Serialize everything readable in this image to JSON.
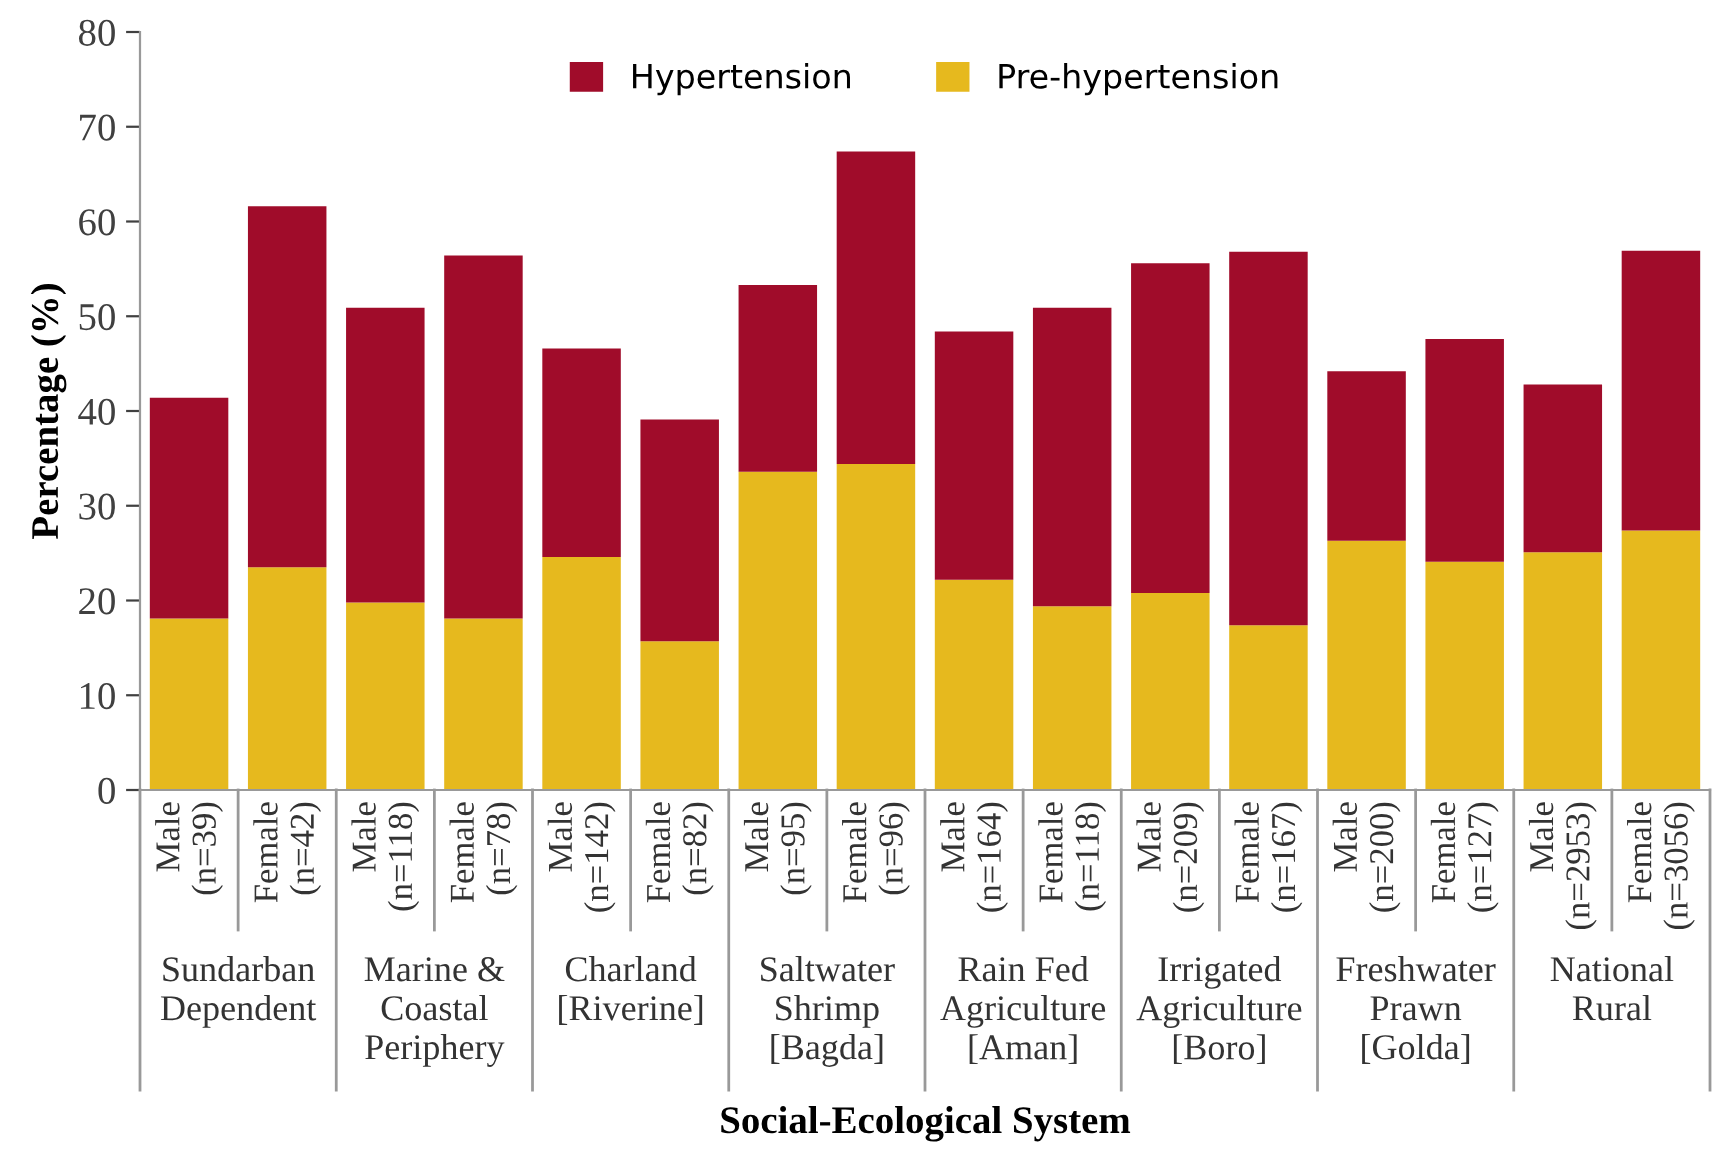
{
  "chart_data": {
    "type": "bar",
    "stacked": true,
    "ylabel": "Percentage (%)",
    "xlabel": "Social-Ecological System",
    "categories": [
      "Male\n(n=39)",
      "Female\n(n=42)",
      "Male\n(n=118)",
      "Female\n(n=78)",
      "Male\n(n=142)",
      "Female\n(n=82)",
      "Male\n(n=95)",
      "Female\n(n=96)",
      "Male\n(n=164)",
      "Female\n(n=118)",
      "Male\n(n=209)",
      "Female\n(n=167)",
      "Male\n(n=200)",
      "Female\n(n=127)",
      "Male\n(n=2953)",
      "Female\n(n=3056)"
    ],
    "series": [
      {
        "name": "Pre-hypertension",
        "color": "#e6b91e",
        "values": [
          18.1,
          23.5,
          19.8,
          18.1,
          24.6,
          15.7,
          33.6,
          34.4,
          22.2,
          19.4,
          20.8,
          17.4,
          26.3,
          24.1,
          25.1,
          27.4
        ]
      },
      {
        "name": "Hypertension",
        "color": "#a00c2a",
        "values": [
          23.3,
          38.1,
          31.1,
          38.3,
          22.0,
          23.4,
          19.7,
          33.0,
          26.2,
          31.5,
          34.8,
          39.4,
          17.9,
          23.5,
          17.7,
          29.5
        ]
      }
    ],
    "annotations": [
      "Sundarban\nDependent",
      "Marine &\nCoastal\nPeriphery",
      "Charland\n[Riverine]",
      "Saltwater\nShrimp\n[Bagda]",
      "Rain Fed\nAgriculture\n[Aman]",
      "Irrigated\nAgriculture\n[Boro]",
      "Freshwater\nPrawn\n[Golda]",
      "National\nRural"
    ],
    "ylim": [
      0,
      80
    ],
    "yticks": [
      0,
      10,
      20,
      30,
      40,
      50,
      60,
      70,
      80
    ],
    "legend": "top",
    "grid": false
  }
}
